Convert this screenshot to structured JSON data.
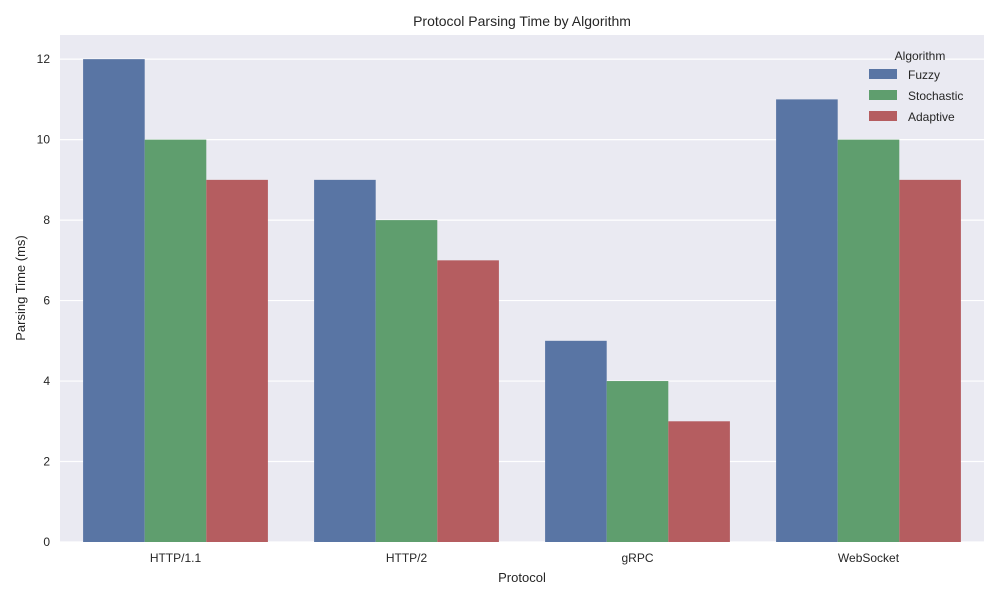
{
  "chart_data": {
    "type": "bar",
    "title": "Protocol Parsing Time by Algorithm",
    "xlabel": "Protocol",
    "ylabel": "Parsing Time (ms)",
    "categories": [
      "HTTP/1.1",
      "HTTP/2",
      "gRPC",
      "WebSocket"
    ],
    "series": [
      {
        "name": "Fuzzy",
        "values": [
          12,
          9,
          5,
          11
        ],
        "color": "#5975a4"
      },
      {
        "name": "Stochastic",
        "values": [
          10,
          8,
          4,
          10
        ],
        "color": "#5f9e6e"
      },
      {
        "name": "Adaptive",
        "values": [
          9,
          7,
          3,
          9
        ],
        "color": "#b55d60"
      }
    ],
    "ylim": [
      0,
      12.6
    ],
    "yticks": [
      0,
      2,
      4,
      6,
      8,
      10,
      12
    ],
    "grid": true,
    "legend": {
      "title": "Algorithm",
      "placement": "top-right"
    },
    "colors": {
      "plot_background": "#eaeaf2",
      "grid": "#ffffff"
    }
  }
}
